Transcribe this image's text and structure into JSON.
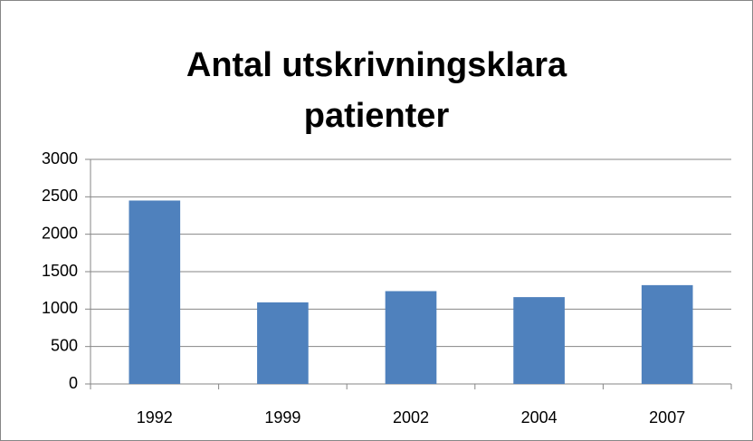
{
  "chart_data": {
    "type": "bar",
    "title": "Antal utskrivningsklara patienter",
    "categories": [
      "1992",
      "1999",
      "2002",
      "2004",
      "2007"
    ],
    "values": [
      2450,
      1090,
      1240,
      1160,
      1320
    ],
    "color": "#4f81bd",
    "ylim": [
      0,
      3000
    ],
    "yticks": [
      0,
      500,
      1000,
      1500,
      2000,
      2500,
      3000
    ],
    "grid": true
  }
}
